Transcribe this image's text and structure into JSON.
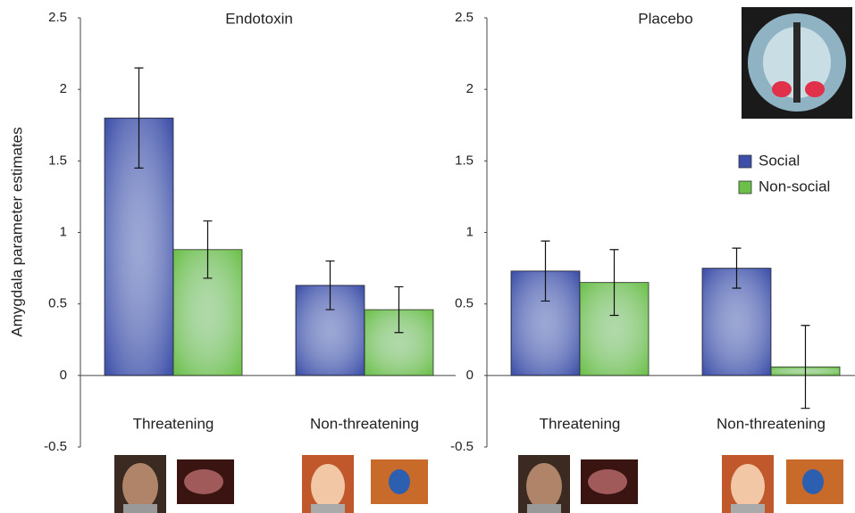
{
  "chart_data": [
    {
      "type": "bar",
      "title": "Endotoxin",
      "y_label": "Amygdala parameter estimates",
      "categories": [
        "Threatening",
        "Non-threatening"
      ],
      "series": [
        {
          "name": "Social",
          "color": "#3d4fa8",
          "values": [
            1.8,
            0.63
          ],
          "errors": [
            0.35,
            0.17
          ]
        },
        {
          "name": "Non-social",
          "color": "#6cc04a",
          "values": [
            0.88,
            0.46
          ],
          "errors": [
            0.2,
            0.16
          ]
        }
      ],
      "ylim": [
        -0.5,
        2.5
      ],
      "yticks": [
        -0.5,
        0,
        0.5,
        1,
        1.5,
        2,
        2.5
      ]
    },
    {
      "type": "bar",
      "title": "Placebo",
      "categories": [
        "Threatening",
        "Non-threatening"
      ],
      "series": [
        {
          "name": "Social",
          "color": "#3d4fa8",
          "values": [
            0.73,
            0.75
          ],
          "errors": [
            0.21,
            0.14
          ]
        },
        {
          "name": "Non-social",
          "color": "#6cc04a",
          "values": [
            0.65,
            0.06
          ],
          "errors": [
            0.23,
            0.29
          ]
        }
      ],
      "ylim": [
        -0.5,
        2.5
      ],
      "yticks": [
        -0.5,
        0,
        0.5,
        1,
        1.5,
        2,
        2.5
      ],
      "legend": "upper right"
    }
  ]
}
